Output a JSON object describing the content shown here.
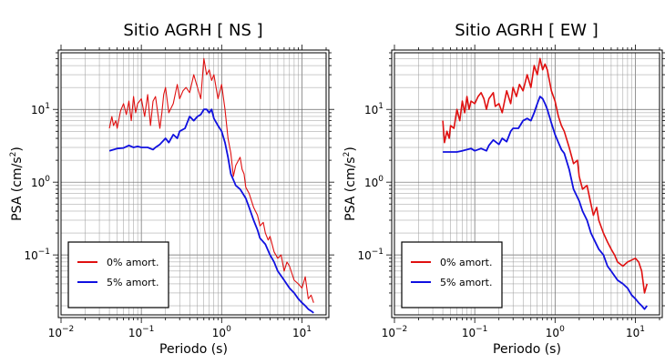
{
  "chart_data": [
    {
      "type": "line",
      "title": "Sitio AGRH [ NS ]",
      "xlabel": "Periodo (s)",
      "ylabel_prefix": "PSA (cm/s",
      "ylabel_sup": "2",
      "ylabel_suffix": ")",
      "xscale": "log",
      "yscale": "log",
      "xlim": [
        0.01,
        20
      ],
      "ylim": [
        0.015,
        60
      ],
      "x_ticks": [
        {
          "base": "10",
          "exp": "−2"
        },
        {
          "base": "10",
          "exp": "−1"
        },
        {
          "base": "10",
          "exp": "0"
        },
        {
          "base": "10",
          "exp": "1"
        }
      ],
      "y_ticks": [
        {
          "base": "10",
          "exp": "−1"
        },
        {
          "base": "10",
          "exp": "0"
        },
        {
          "base": "10",
          "exp": "1"
        }
      ],
      "grid": true,
      "legend_position": "bottom-left",
      "series": [
        {
          "name": "0% amort.",
          "color": "#e01010",
          "x": [
            0.04,
            0.043,
            0.045,
            0.048,
            0.05,
            0.055,
            0.06,
            0.065,
            0.07,
            0.075,
            0.08,
            0.085,
            0.09,
            0.1,
            0.11,
            0.12,
            0.13,
            0.14,
            0.15,
            0.17,
            0.18,
            0.19,
            0.2,
            0.22,
            0.25,
            0.28,
            0.3,
            0.33,
            0.36,
            0.4,
            0.45,
            0.5,
            0.55,
            0.6,
            0.65,
            0.7,
            0.75,
            0.8,
            0.9,
            1.0,
            1.1,
            1.2,
            1.3,
            1.4,
            1.5,
            1.7,
            1.8,
            1.9,
            2.0,
            2.2,
            2.5,
            2.8,
            3.0,
            3.3,
            3.5,
            3.8,
            4.0,
            4.5,
            5.0,
            5.5,
            6.0,
            6.5,
            7.0,
            8.0,
            9.0,
            10.0,
            11.0,
            12.0,
            13.0,
            14.0
          ],
          "y": [
            5.5,
            8.0,
            6.0,
            7.0,
            5.5,
            9.5,
            12.0,
            8.5,
            13.0,
            7.0,
            15.0,
            9.0,
            12.0,
            14.0,
            8.0,
            16.0,
            6.0,
            13.0,
            15.0,
            5.5,
            9.0,
            16.0,
            20.0,
            9.0,
            12.0,
            22.0,
            14.0,
            18.0,
            20.0,
            17.0,
            30.0,
            20.0,
            14.0,
            50.0,
            30.0,
            35.0,
            25.0,
            30.0,
            14.0,
            22.0,
            10.0,
            4.0,
            2.5,
            1.2,
            1.7,
            2.2,
            1.5,
            1.3,
            0.85,
            0.7,
            0.45,
            0.35,
            0.25,
            0.28,
            0.2,
            0.16,
            0.18,
            0.11,
            0.09,
            0.1,
            0.06,
            0.08,
            0.07,
            0.045,
            0.04,
            0.035,
            0.05,
            0.025,
            0.028,
            0.022
          ]
        },
        {
          "name": "5% amort.",
          "color": "#1010e0",
          "x": [
            0.04,
            0.05,
            0.06,
            0.07,
            0.08,
            0.09,
            0.1,
            0.12,
            0.14,
            0.15,
            0.17,
            0.2,
            0.22,
            0.25,
            0.28,
            0.3,
            0.35,
            0.4,
            0.45,
            0.5,
            0.55,
            0.6,
            0.65,
            0.7,
            0.75,
            0.8,
            0.9,
            1.0,
            1.1,
            1.2,
            1.3,
            1.5,
            1.7,
            2.0,
            2.2,
            2.5,
            2.8,
            3.0,
            3.5,
            4.0,
            4.5,
            5.0,
            6.0,
            7.0,
            8.0,
            9.0,
            10.0,
            11.0,
            12.0,
            13.0,
            14.0
          ],
          "y": [
            2.7,
            2.9,
            2.95,
            3.2,
            3.0,
            3.1,
            3.0,
            3.0,
            2.8,
            3.0,
            3.3,
            4.0,
            3.5,
            4.5,
            4.0,
            5.0,
            5.5,
            8.0,
            7.0,
            8.0,
            8.5,
            10.0,
            10.0,
            9.0,
            10.0,
            7.5,
            6.0,
            5.0,
            3.5,
            2.2,
            1.3,
            0.9,
            0.8,
            0.6,
            0.45,
            0.3,
            0.22,
            0.17,
            0.14,
            0.1,
            0.08,
            0.06,
            0.045,
            0.035,
            0.03,
            0.025,
            0.022,
            0.02,
            0.018,
            0.017,
            0.016
          ]
        }
      ]
    },
    {
      "type": "line",
      "title": "Sitio AGRH [ EW ]",
      "xlabel": "Periodo (s)",
      "ylabel_prefix": "PSA (cm/s",
      "ylabel_sup": "2",
      "ylabel_suffix": ")",
      "xscale": "log",
      "yscale": "log",
      "xlim": [
        0.01,
        20
      ],
      "ylim": [
        0.015,
        60
      ],
      "x_ticks": [
        {
          "base": "10",
          "exp": "−2"
        },
        {
          "base": "10",
          "exp": "−1"
        },
        {
          "base": "10",
          "exp": "0"
        },
        {
          "base": "10",
          "exp": "1"
        }
      ],
      "y_ticks": [
        {
          "base": "10",
          "exp": "−1"
        },
        {
          "base": "10",
          "exp": "0"
        },
        {
          "base": "10",
          "exp": "1"
        }
      ],
      "grid": true,
      "legend_position": "bottom-left",
      "series": [
        {
          "name": "0% amort.",
          "color": "#e01010",
          "x": [
            0.04,
            0.042,
            0.045,
            0.048,
            0.05,
            0.055,
            0.06,
            0.065,
            0.07,
            0.075,
            0.08,
            0.085,
            0.09,
            0.1,
            0.11,
            0.12,
            0.13,
            0.14,
            0.15,
            0.17,
            0.18,
            0.2,
            0.22,
            0.25,
            0.28,
            0.3,
            0.33,
            0.36,
            0.4,
            0.45,
            0.5,
            0.55,
            0.6,
            0.65,
            0.7,
            0.75,
            0.8,
            0.9,
            1.0,
            1.1,
            1.2,
            1.3,
            1.5,
            1.7,
            1.9,
            2.0,
            2.2,
            2.5,
            2.8,
            3.0,
            3.3,
            3.5,
            4.0,
            4.5,
            5.0,
            5.5,
            6.0,
            7.0,
            8.0,
            9.0,
            10.0,
            11.0,
            12.0,
            13.0,
            14.0
          ],
          "y": [
            7.0,
            3.5,
            5.0,
            4.0,
            6.0,
            5.5,
            10.0,
            7.0,
            13.0,
            9.0,
            15.0,
            10.0,
            13.0,
            12.0,
            15.0,
            17.0,
            14.0,
            10.0,
            14.0,
            17.0,
            11.0,
            12.0,
            9.0,
            18.0,
            12.0,
            20.0,
            15.0,
            22.0,
            18.0,
            30.0,
            20.0,
            40.0,
            30.0,
            50.0,
            35.0,
            42.0,
            35.0,
            18.0,
            13.0,
            8.0,
            6.0,
            5.0,
            3.0,
            1.8,
            2.0,
            1.2,
            0.8,
            0.9,
            0.5,
            0.35,
            0.45,
            0.3,
            0.2,
            0.15,
            0.12,
            0.1,
            0.08,
            0.07,
            0.08,
            0.085,
            0.09,
            0.08,
            0.06,
            0.03,
            0.04
          ]
        },
        {
          "name": "5% amort.",
          "color": "#1010e0",
          "x": [
            0.04,
            0.05,
            0.06,
            0.07,
            0.08,
            0.09,
            0.1,
            0.12,
            0.14,
            0.15,
            0.17,
            0.2,
            0.22,
            0.25,
            0.28,
            0.3,
            0.35,
            0.4,
            0.45,
            0.5,
            0.55,
            0.6,
            0.65,
            0.7,
            0.75,
            0.8,
            0.9,
            1.0,
            1.1,
            1.2,
            1.3,
            1.5,
            1.7,
            2.0,
            2.2,
            2.5,
            2.8,
            3.0,
            3.5,
            4.0,
            4.5,
            5.0,
            6.0,
            7.0,
            8.0,
            9.0,
            10.0,
            11.0,
            12.0,
            13.0,
            14.0
          ],
          "y": [
            2.6,
            2.6,
            2.6,
            2.7,
            2.8,
            2.9,
            2.7,
            2.9,
            2.7,
            3.2,
            3.8,
            3.3,
            4.0,
            3.6,
            5.0,
            5.5,
            5.5,
            7.0,
            7.5,
            7.0,
            9.0,
            12.0,
            15.0,
            14.0,
            12.0,
            10.0,
            6.5,
            4.5,
            3.5,
            2.8,
            2.5,
            1.5,
            0.8,
            0.55,
            0.4,
            0.3,
            0.2,
            0.17,
            0.12,
            0.1,
            0.07,
            0.06,
            0.045,
            0.04,
            0.035,
            0.028,
            0.025,
            0.022,
            0.02,
            0.018,
            0.02
          ]
        }
      ]
    }
  ]
}
